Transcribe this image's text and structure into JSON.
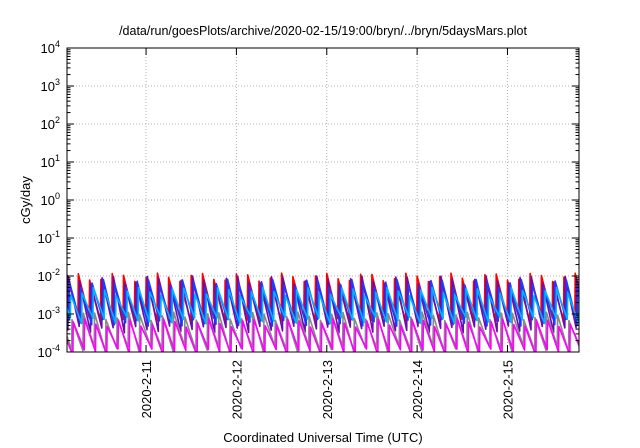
{
  "chart_data": {
    "type": "line",
    "title": "/data/run/goesPlots/archive/2020-02-15/19:00/bryn/../bryn/5daysMars.plot",
    "xlabel": "Coordinated Universal Time (UTC)",
    "ylabel": "cGy/day",
    "y_scale": "log",
    "ylim": [
      0.0001,
      10000
    ],
    "y_ticks": [
      {
        "base": "10",
        "exp": "-4"
      },
      {
        "base": "10",
        "exp": "-3"
      },
      {
        "base": "10",
        "exp": "-2"
      },
      {
        "base": "10",
        "exp": "-1"
      },
      {
        "base": "10",
        "exp": "0"
      },
      {
        "base": "10",
        "exp": "1"
      },
      {
        "base": "10",
        "exp": "2"
      },
      {
        "base": "10",
        "exp": "3"
      },
      {
        "base": "10",
        "exp": "4"
      }
    ],
    "xlim": [
      "2020-02-10 03:00",
      "2020-02-15 19:00"
    ],
    "x_ticks": [
      "2020-2-11",
      "2020-2-12",
      "2020-2-13",
      "2020-2-14",
      "2020-2-15"
    ],
    "grid": true,
    "sawtooth_period_hours": 3,
    "series": [
      {
        "color": "#ff0000",
        "low": 0.0008,
        "high": 0.0095
      },
      {
        "color": "#6a0dad",
        "low": 0.0004,
        "high": 0.008
      },
      {
        "color": "#1e3cff",
        "low": 0.0006,
        "high": 0.0065
      },
      {
        "color": "#00b4ff",
        "low": 0.0007,
        "high": 0.004
      },
      {
        "color": "#888888",
        "low": 0.00012,
        "high": 0.0009
      },
      {
        "color": "#ff00ff",
        "low": 0.0001,
        "high": 0.0006
      }
    ]
  }
}
